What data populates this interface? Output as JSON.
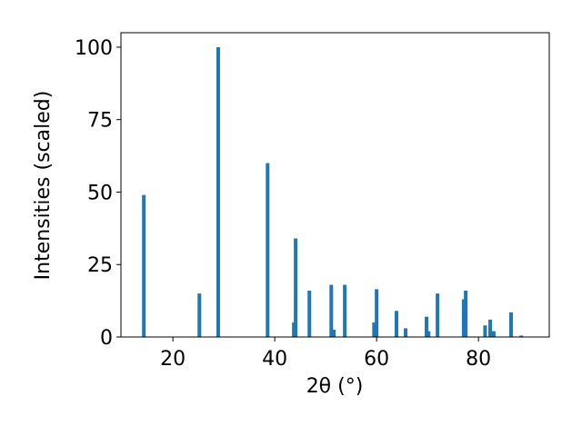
{
  "chart_data": {
    "type": "bar",
    "x_label": "2θ (°)",
    "y_label": "Intensities (scaled)",
    "color": "#1f77b4",
    "x": [
      14.3,
      25.2,
      28.9,
      38.6,
      43.75,
      44.1,
      46.8,
      51.1,
      51.6,
      53.75,
      59.5,
      60.0,
      63.9,
      65.7,
      69.8,
      70.2,
      71.96,
      77.1,
      77.5,
      81.3,
      82.3,
      83.0,
      86.4,
      88.4
    ],
    "values": [
      49,
      15,
      100,
      60,
      5,
      34,
      16,
      18,
      2.5,
      18,
      5,
      16.5,
      9,
      3,
      7,
      2,
      15,
      13,
      16,
      4,
      6,
      2,
      8.5,
      0.5
    ],
    "xlim": [
      9.8,
      93.9
    ],
    "ylim": [
      0,
      105
    ],
    "xticks": [
      20,
      40,
      60,
      80
    ],
    "yticks": [
      0,
      25,
      50,
      75,
      100
    ]
  }
}
